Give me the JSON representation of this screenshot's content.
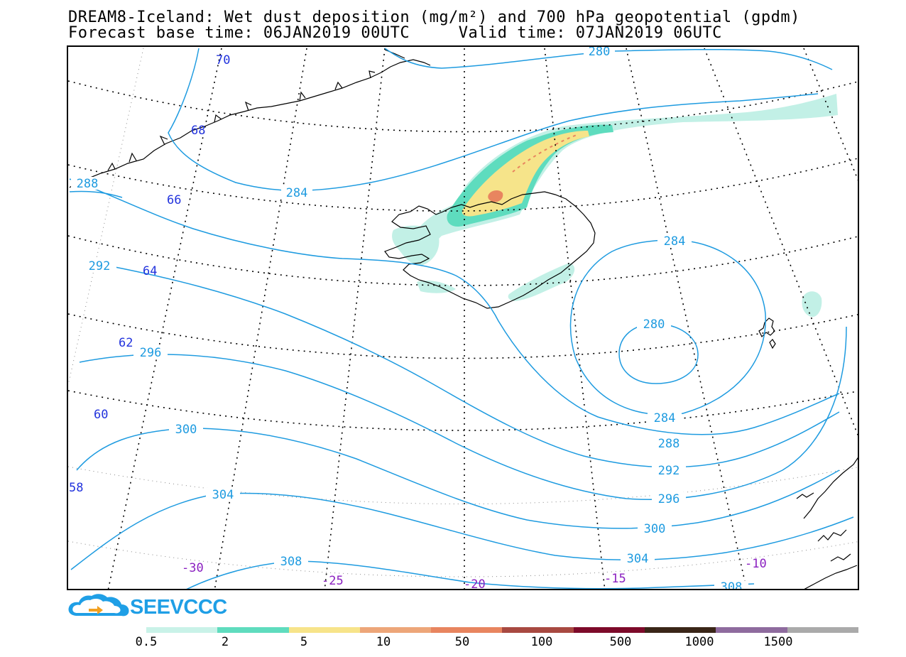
{
  "header": {
    "title_line1": "DREAM8-Iceland: Wet dust deposition (mg/m²) and 700 hPa geopotential (gpdm)",
    "title_line2": "Forecast base time: 06JAN2019 00UTC     Valid time: 07JAN2019 06UTC"
  },
  "logo": {
    "text": "SEEVCCC",
    "icon": "cloud-arrow-icon"
  },
  "map": {
    "contour_color": "#1e9be0",
    "lat_label_color": "#2233dd",
    "lon_label_color": "#8a1fc0",
    "contour_labels": [
      "280",
      "284",
      "288",
      "288",
      "292",
      "292",
      "296",
      "296",
      "300",
      "300",
      "304",
      "304",
      "308",
      "308",
      "284",
      "280",
      "284"
    ],
    "latitude_labels": [
      "70",
      "68",
      "66",
      "64",
      "62",
      "60",
      "58"
    ],
    "longitude_labels": [
      "-30",
      "-25",
      "-20",
      "-15",
      "-10"
    ],
    "dust_colors": {
      "light": "#c2f0e6",
      "green": "#5edcbe",
      "yellow": "#f6e48a",
      "orange": "#e8855f"
    }
  },
  "legend": {
    "colors": [
      "#c9f2e8",
      "#5fdcbe",
      "#f7e48a",
      "#eda679",
      "#e8855f",
      "#a84941",
      "#7d0a2a",
      "#3a2618",
      "#8e6b9e",
      "#aaaaaa"
    ],
    "labels": [
      "0.5",
      "2",
      "5",
      "10",
      "50",
      "100",
      "500",
      "1000",
      "1500"
    ]
  }
}
